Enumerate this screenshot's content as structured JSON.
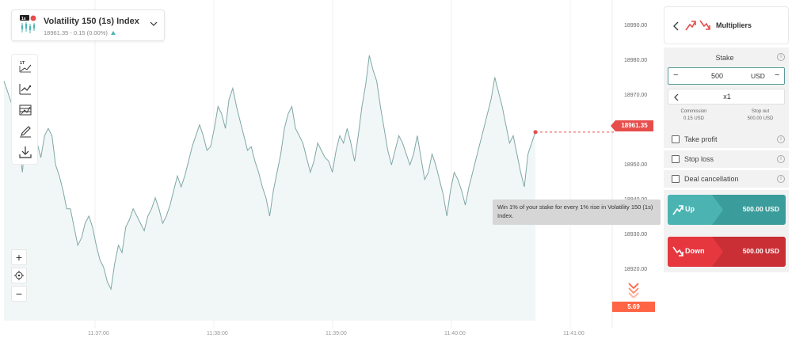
{
  "symbol": {
    "name": "Volatility 150 (1s) Index",
    "price_change": "18961.35 - 0.15 (0.00%)",
    "icon": "volatility-chart-icon"
  },
  "toolbar": {
    "items": [
      {
        "name": "chart-type-icon",
        "label": "1T"
      },
      {
        "name": "indicators-icon"
      },
      {
        "name": "templates-icon"
      },
      {
        "name": "drawing-tools-icon"
      },
      {
        "name": "download-icon"
      }
    ]
  },
  "zoom": {
    "plus": "+",
    "minus": "−"
  },
  "price_scale": [
    "18990.00",
    "18980.00",
    "18970.00",
    "18950.00",
    "18940.00",
    "18930.00",
    "18920.00"
  ],
  "time_scale": [
    "11:37:00",
    "11:38:00",
    "11:39:00",
    "11:40:00",
    "11:41:00"
  ],
  "current_price": "18961.35",
  "countdown": "5.69",
  "tooltip": "Win 1% of your stake for every 1% rise in Volatility 150 (1s) Index.",
  "panel": {
    "title": "Multipliers",
    "stake": {
      "label": "Stake",
      "value": "500",
      "currency": "USD",
      "minus": "−",
      "plus": "−"
    },
    "multiplier": "x1",
    "commission_label": "Commission",
    "commission_value": "0.15 USD",
    "stop_out_label": "Stop out",
    "stop_out_value": "500.00 USD",
    "options": [
      "Take profit",
      "Stop loss",
      "Deal cancellation"
    ],
    "up": {
      "label": "Up",
      "amount": "500.00 USD"
    },
    "down": {
      "label": "Down",
      "amount": "500.00 USD"
    }
  },
  "colors": {
    "line": "#7fa7a6",
    "area": "#f1f7f6",
    "up": "#4bb4b3",
    "up_dark": "#3a9d9b",
    "down": "#e6373f",
    "down_dark": "#c92f35",
    "marker": "#e64d4b"
  },
  "chart_data": {
    "type": "area",
    "ylim": [
      18915,
      18995
    ],
    "x_ticks": [
      "11:37:00",
      "11:38:00",
      "11:39:00",
      "11:40:00",
      "11:41:00"
    ],
    "y": [
      18975,
      18972,
      18969,
      18966,
      18958,
      18950,
      18962,
      18970,
      18967,
      18958,
      18954,
      18960,
      18962,
      18960,
      18952,
      18949,
      18945,
      18940,
      18940,
      18935,
      18930,
      18932,
      18936,
      18938,
      18935,
      18930,
      18926,
      18924,
      18920,
      18918,
      18925,
      18930,
      18928,
      18935,
      18937,
      18940,
      18938,
      18936,
      18934,
      18938,
      18940,
      18943,
      18940,
      18936,
      18938,
      18941,
      18945,
      18949,
      18946,
      18949,
      18953,
      18957,
      18960,
      18963,
      18960,
      18956,
      18957,
      18962,
      18968,
      18966,
      18962,
      18970,
      18973,
      18968,
      18964,
      18960,
      18956,
      18957,
      18953,
      18950,
      18946,
      18943,
      18938,
      18945,
      18950,
      18955,
      18962,
      18966,
      18968,
      18962,
      18960,
      18958,
      18954,
      18950,
      18953,
      18958,
      18956,
      18954,
      18953,
      18950,
      18956,
      18960,
      18958,
      18962,
      18958,
      18953,
      18960,
      18968,
      18974,
      18982,
      18978,
      18975,
      18968,
      18962,
      18956,
      18952,
      18956,
      18960,
      18958,
      18955,
      18952,
      18955,
      18960,
      18954,
      18948,
      18950,
      18955,
      18952,
      18948,
      18944,
      18938,
      18945,
      18950,
      18948,
      18945,
      18941,
      18946,
      18950,
      18954,
      18958,
      18962,
      18966,
      18970,
      18976,
      18972,
      18968,
      18963,
      18958,
      18960,
      18955,
      18950,
      18946,
      18955,
      18958,
      18961
    ]
  }
}
